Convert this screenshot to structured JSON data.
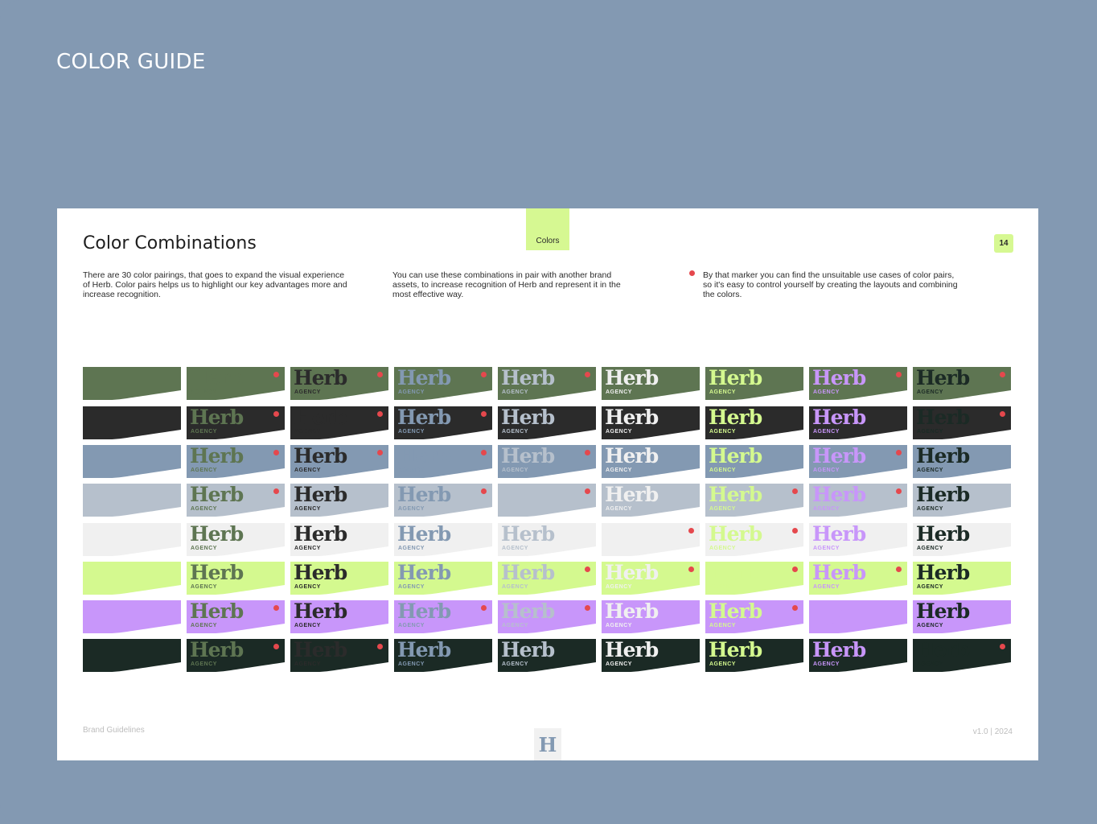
{
  "page": {
    "heading": "COLOR GUIDE"
  },
  "sheet": {
    "title": "Color Combinations",
    "tab_label": "Colors",
    "page_number": "14",
    "paragraphs": [
      "There are 30 color pairings, that goes to expand the visual experience of Herb. Color pairs helps us to highlight our key advantages more and increase recognition.",
      "You can use these combinations in pair with another brand assets, to increase recognition of Herb and represent it in the most effective way.",
      "By that marker you can find the unsuitable use cases of color pairs, so it's easy to control yourself by creating the layouts and combining the colors."
    ],
    "footer_left": "Brand Guidelines",
    "footer_right": "v1.0 | 2024",
    "footer_logo": "H"
  },
  "brand": {
    "word": "Herb",
    "sub": "AGENCY"
  },
  "palette": [
    "#ffffff",
    "#5e7552",
    "#2b2b2b",
    "#8399b2",
    "#b6c0cc",
    "#f0f0f0",
    "#d4f98f",
    "#c896fa",
    "#1b2a25"
  ],
  "colors": {
    "marker": "#e5484d",
    "accent": "#d6f892",
    "background": "#8399b2"
  },
  "matrix": {
    "unsuitable_rows": [
      [],
      [
        1,
        2,
        3,
        4,
        7,
        8
      ],
      [
        1,
        2,
        3,
        8
      ],
      [
        1,
        2,
        3,
        4,
        7
      ],
      [
        1,
        3,
        4,
        6,
        7
      ],
      [
        5,
        6
      ],
      [
        4,
        5,
        6,
        7
      ],
      [
        1,
        3,
        4,
        6
      ],
      [
        1,
        2,
        8
      ]
    ]
  }
}
